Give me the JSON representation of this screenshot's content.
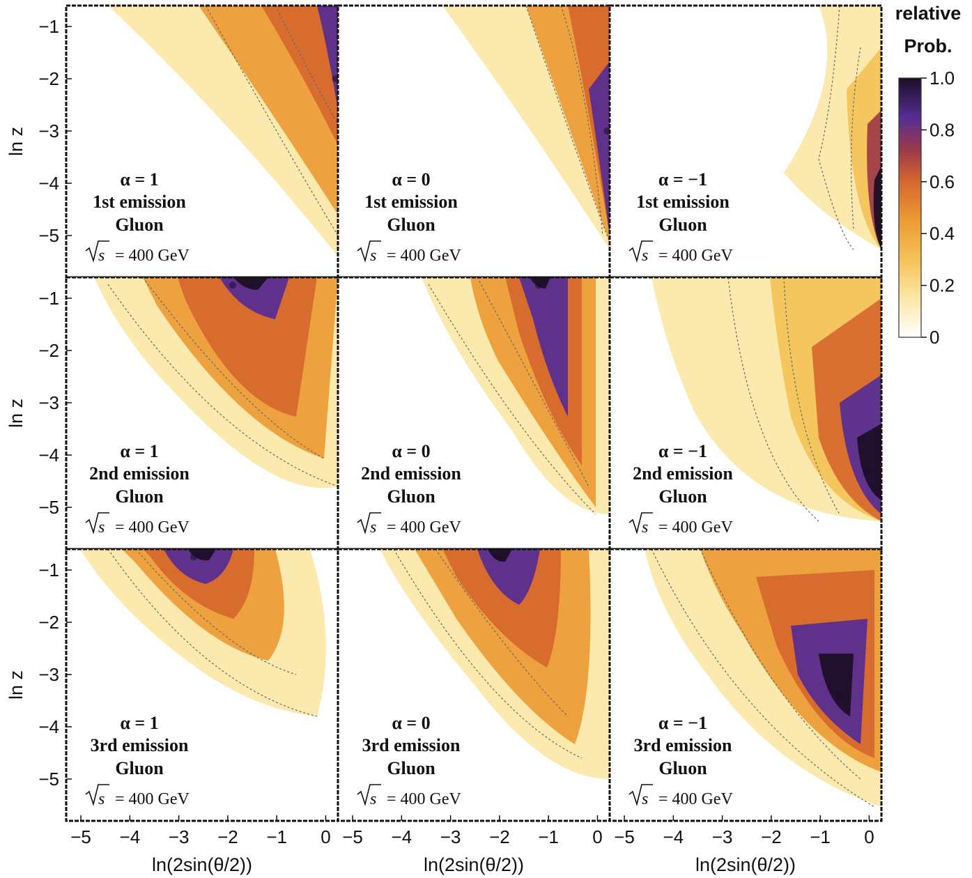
{
  "chart_data": {
    "type": "heatmap",
    "title": "",
    "xlabel": "ln(2sin(θ/2))",
    "ylabel": "ln z",
    "xlim": [
      -5.3,
      0.25
    ],
    "ylim": [
      -5.8,
      -0.6
    ],
    "x_ticks": [
      "−5",
      "−4",
      "−3",
      "−2",
      "−1",
      "0"
    ],
    "x_tick_values": [
      -5,
      -4,
      -3,
      -2,
      -1,
      0
    ],
    "y_ticks": [
      "−1",
      "−2",
      "−3",
      "−4",
      "−5"
    ],
    "y_tick_values": [
      -1,
      -2,
      -3,
      -4,
      -5
    ],
    "colorbar": {
      "title_line1": "relative",
      "title_line2": "Prob.",
      "ticks": [
        "1.0",
        "0.8",
        "0.6",
        "0.4",
        "0.2",
        "0"
      ],
      "tick_values": [
        1.0,
        0.8,
        0.6,
        0.4,
        0.2,
        0.0
      ],
      "range": [
        0,
        1
      ],
      "colors": [
        "#ffffff",
        "#fbe7a6",
        "#f5c257",
        "#ec9b35",
        "#d6672e",
        "#9c3a48",
        "#552d94",
        "#1b0d25"
      ]
    },
    "panels": [
      {
        "alpha": "α = 1",
        "emission": "1st emission",
        "particle": "Gluon",
        "sqrt_s": "= 400 GeV",
        "peak": {
          "x": 0.2,
          "y": -2.0
        }
      },
      {
        "alpha": "α = 0",
        "emission": "1st emission",
        "particle": "Gluon",
        "sqrt_s": "= 400 GeV",
        "peak": {
          "x": 0.2,
          "y": -3.0
        }
      },
      {
        "alpha": "α = −1",
        "emission": "1st emission",
        "particle": "Gluon",
        "sqrt_s": "= 400 GeV",
        "peak": {
          "x": 0.2,
          "y": -4.9
        }
      },
      {
        "alpha": "α = 1",
        "emission": "2nd emission",
        "particle": "Gluon",
        "sqrt_s": "= 400 GeV",
        "peak": {
          "x": -1.9,
          "y": -0.75
        }
      },
      {
        "alpha": "α = 0",
        "emission": "2nd emission",
        "particle": "Gluon",
        "sqrt_s": "= 400 GeV",
        "peak": {
          "x": -1.2,
          "y": -0.75
        }
      },
      {
        "alpha": "α = −1",
        "emission": "2nd emission",
        "particle": "Gluon",
        "sqrt_s": "= 400 GeV",
        "peak": {
          "x": -0.05,
          "y": -4.3
        }
      },
      {
        "alpha": "α = 1",
        "emission": "3rd emission",
        "particle": "Gluon",
        "sqrt_s": "= 400 GeV",
        "peak": {
          "x": -2.7,
          "y": -0.75
        }
      },
      {
        "alpha": "α = 0",
        "emission": "3rd emission",
        "particle": "Gluon",
        "sqrt_s": "= 400 GeV",
        "peak": {
          "x": -2.0,
          "y": -0.75
        }
      },
      {
        "alpha": "α = −1",
        "emission": "3rd emission",
        "particle": "Gluon",
        "sqrt_s": "= 400 GeV",
        "peak": {
          "x": -0.6,
          "y": -3.4
        }
      }
    ]
  }
}
